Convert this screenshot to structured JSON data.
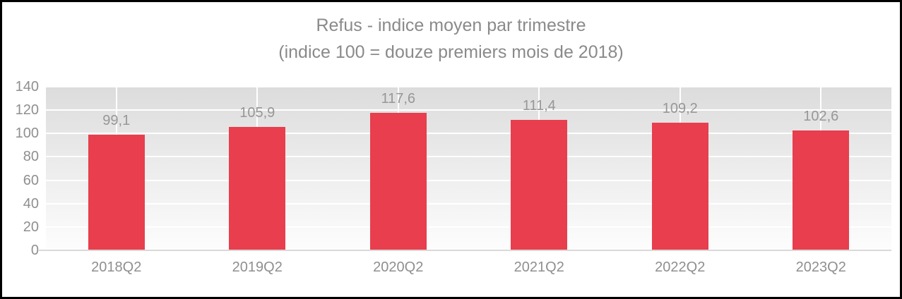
{
  "chart_data": {
    "type": "bar",
    "title": "Refus - indice moyen par trimestre",
    "subtitle": "(indice 100 = douze premiers mois de 2018)",
    "categories": [
      "2018Q2",
      "2019Q2",
      "2020Q2",
      "2021Q2",
      "2022Q2",
      "2023Q2"
    ],
    "values": [
      99.1,
      105.9,
      117.6,
      111.4,
      109.2,
      102.6
    ],
    "data_labels": [
      "99,1",
      "105,9",
      "117,6",
      "111,4",
      "109,2",
      "102,6"
    ],
    "xlabel": "",
    "ylabel": "",
    "ylim": [
      0,
      140
    ],
    "yticks": [
      0,
      20,
      40,
      60,
      80,
      100,
      120,
      140
    ],
    "grid": true,
    "legend": false,
    "decimal_separator": ",",
    "colors": {
      "bar": "#e83e4d",
      "title_text": "#8a8a8a",
      "axis_text": "#8f8f8f",
      "data_label_text": "#979797",
      "plot_bg_top": "#dcdcdc",
      "plot_bg_bottom": "#fdfdfd",
      "gridline": "#ffffff",
      "baseline": "#d9d9d9",
      "frame_border": "#000000",
      "background": "#ffffff"
    }
  }
}
